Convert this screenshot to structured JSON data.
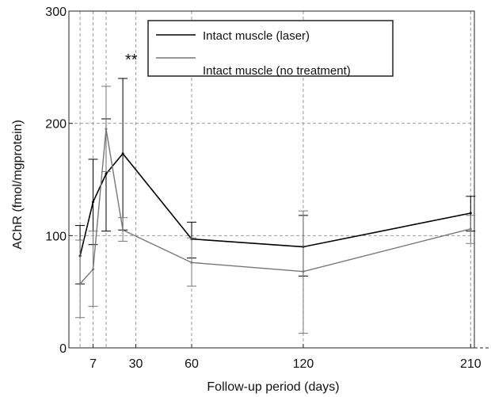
{
  "chart_data": {
    "type": "line",
    "title": "",
    "xlabel": "Follow-up period (days)",
    "ylabel": "AChR (fmol/mgprotein)",
    "x_tick_labels": [
      "7",
      "30",
      "60",
      "120",
      "210"
    ],
    "x_ticks": [
      7,
      30,
      60,
      120,
      210
    ],
    "y_tick_labels": [
      "0",
      "100",
      "200",
      "300"
    ],
    "y_ticks": [
      0,
      100,
      200,
      300
    ],
    "xlim": [
      -6,
      212
    ],
    "ylim": [
      0,
      300
    ],
    "grid": true,
    "grid_x_values": [
      0,
      7,
      14,
      30,
      60,
      120,
      210
    ],
    "legend_position": "top",
    "annotation": {
      "text": "**",
      "x": 32,
      "y": 252
    },
    "series": [
      {
        "name": "Intact muscle (laser)",
        "color": "#000000",
        "x": [
          0,
          7,
          14,
          23,
          60,
          120,
          210
        ],
        "y": [
          82,
          130,
          155,
          173,
          97,
          90,
          120
        ],
        "err_low": [
          57,
          92,
          104,
          105,
          80,
          64,
          104
        ],
        "err_high": [
          109,
          168,
          204,
          240,
          112,
          118,
          135
        ]
      },
      {
        "name": "Intact muscle (no treatment)",
        "color": "#777777",
        "x": [
          0,
          7,
          14,
          23,
          60,
          120,
          210
        ],
        "y": [
          57,
          70,
          195,
          105,
          76,
          68,
          106
        ],
        "err_low": [
          27,
          37,
          157,
          95,
          55,
          13,
          93
        ],
        "err_high": [
          96,
          104,
          233,
          116,
          98,
          122,
          118
        ]
      }
    ]
  }
}
